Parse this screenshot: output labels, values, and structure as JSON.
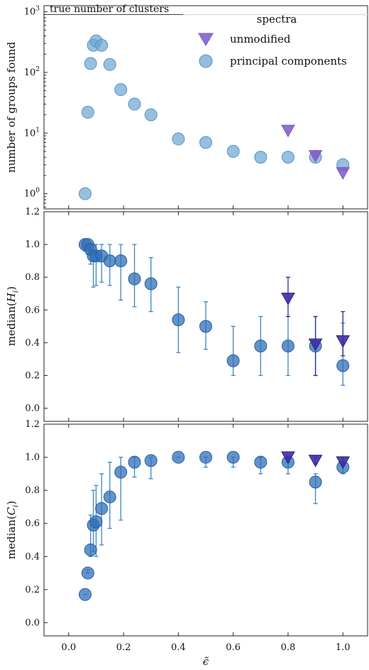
{
  "chart_data": [
    {
      "type": "scatter",
      "panel": "top",
      "ylabel": "number of groups found",
      "yscale": "log",
      "ylim_exp": [
        -0.25,
        3.1
      ],
      "xlim": [
        -0.09,
        1.09
      ],
      "yticks": [
        {
          "value": 1,
          "base": "10",
          "exp": "0"
        },
        {
          "value": 10,
          "base": "10",
          "exp": "1"
        },
        {
          "value": 100,
          "base": "10",
          "exp": "2"
        },
        {
          "value": 1000,
          "base": "10",
          "exp": "3"
        }
      ],
      "reference_line": {
        "label": "true number of clusters",
        "value": 900
      },
      "legend": {
        "title": "spectra",
        "entries": [
          {
            "label": "unmodified",
            "marker": "triangle-down",
            "color": "#7e57c9"
          },
          {
            "label": "principal components",
            "marker": "circle",
            "color": "#6fa6d1"
          }
        ],
        "placement": "top-right"
      },
      "series": [
        {
          "name": "principal components",
          "marker": "circle",
          "color": "#6fa6d1",
          "x": [
            0.06,
            0.07,
            0.08,
            0.09,
            0.1,
            0.12,
            0.15,
            0.19,
            0.24,
            0.3,
            0.4,
            0.5,
            0.6,
            0.7,
            0.8,
            0.9,
            1.0
          ],
          "y": [
            1,
            22,
            140,
            280,
            330,
            280,
            135,
            52,
            30,
            20,
            8,
            7,
            5,
            4,
            4,
            4,
            3
          ]
        },
        {
          "name": "unmodified",
          "marker": "triangle-down",
          "color": "#7e57c9",
          "x": [
            0.8,
            0.9,
            1.0
          ],
          "y": [
            11,
            4.2,
            2.2
          ]
        }
      ]
    },
    {
      "type": "scatter",
      "panel": "middle",
      "ylabel_base": "median(",
      "ylabel_var": "H",
      "ylabel_sub": "i",
      "ylabel_close": ")",
      "ylim": [
        -0.08,
        1.2
      ],
      "xlim": [
        -0.09,
        1.09
      ],
      "yticks": [
        "0.0",
        "0.2",
        "0.4",
        "0.6",
        "0.8",
        "1.0",
        "1.2"
      ],
      "series": [
        {
          "name": "principal components",
          "marker": "circle",
          "color": "#2f6fb8",
          "err_color": "#3a87c5",
          "x": [
            0.06,
            0.07,
            0.08,
            0.09,
            0.1,
            0.12,
            0.15,
            0.19,
            0.24,
            0.3,
            0.4,
            0.5,
            0.6,
            0.7,
            0.8,
            0.9,
            1.0
          ],
          "y": [
            1.0,
            1.0,
            0.97,
            0.93,
            0.93,
            0.93,
            0.9,
            0.9,
            0.79,
            0.76,
            0.54,
            0.5,
            0.29,
            0.38,
            0.38,
            0.38,
            0.26
          ],
          "err_low": [
            0.96,
            0.94,
            0.88,
            0.74,
            0.75,
            0.77,
            0.75,
            0.66,
            0.62,
            0.59,
            0.34,
            0.36,
            0.2,
            0.2,
            0.2,
            0.2,
            0.14
          ],
          "err_high": [
            1.0,
            1.0,
            1.0,
            1.0,
            1.0,
            1.0,
            1.0,
            1.0,
            1.0,
            0.92,
            0.74,
            0.65,
            0.5,
            0.56,
            0.56,
            0.56,
            0.52
          ]
        },
        {
          "name": "unmodified",
          "marker": "triangle-down",
          "color": "#3f2ea3",
          "err_color": "#2a2d8f",
          "x": [
            0.8,
            0.9,
            1.0
          ],
          "y": [
            0.67,
            0.39,
            0.41
          ],
          "err_low": [
            0.56,
            0.2,
            0.32
          ],
          "err_high": [
            0.8,
            0.56,
            0.59
          ]
        }
      ]
    },
    {
      "type": "scatter",
      "panel": "bottom",
      "ylabel_base": "median(",
      "ylabel_var": "C",
      "ylabel_sub": "i",
      "ylabel_close": ")",
      "xlabel": "ϵ̃",
      "ylim": [
        -0.08,
        1.2
      ],
      "xlim": [
        -0.09,
        1.09
      ],
      "xticks": [
        "0.0",
        "0.2",
        "0.4",
        "0.6",
        "0.8",
        "1.0"
      ],
      "yticks": [
        "0.0",
        "0.2",
        "0.4",
        "0.6",
        "0.8",
        "1.0",
        "1.2"
      ],
      "series": [
        {
          "name": "principal components",
          "marker": "circle",
          "color": "#2f6fb8",
          "err_color": "#3a87c5",
          "x": [
            0.06,
            0.07,
            0.08,
            0.09,
            0.1,
            0.12,
            0.15,
            0.19,
            0.24,
            0.3,
            0.4,
            0.5,
            0.6,
            0.7,
            0.8,
            0.9,
            1.0
          ],
          "y": [
            0.17,
            0.3,
            0.44,
            0.59,
            0.61,
            0.69,
            0.76,
            0.91,
            0.97,
            0.98,
            1.0,
            1.0,
            1.0,
            0.97,
            0.97,
            0.85,
            0.94
          ],
          "err_low": [
            0.17,
            0.3,
            0.4,
            0.43,
            0.4,
            0.47,
            0.57,
            0.62,
            0.88,
            0.87,
            1.0,
            0.94,
            0.94,
            0.9,
            0.9,
            0.72,
            0.9
          ],
          "err_high": [
            0.17,
            0.32,
            0.65,
            0.8,
            0.83,
            0.9,
            0.97,
            1.0,
            1.0,
            1.0,
            1.0,
            1.0,
            1.0,
            1.0,
            1.0,
            0.9,
            0.96
          ]
        },
        {
          "name": "unmodified",
          "marker": "triangle-down",
          "color": "#3f2ea3",
          "err_color": "#2a2d8f",
          "x": [
            0.8,
            0.9,
            1.0
          ],
          "y": [
            1.0,
            0.98,
            0.97
          ],
          "err_low": [
            0.97,
            0.96,
            0.95
          ],
          "err_high": [
            1.0,
            1.0,
            1.0
          ]
        }
      ]
    }
  ]
}
